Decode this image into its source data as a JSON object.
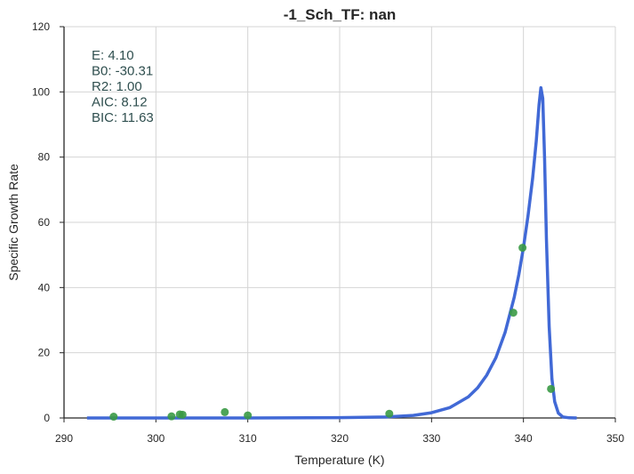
{
  "chart_data": {
    "type": "scatter",
    "title": "-1_Sch_TF: nan",
    "xlabel": "Temperature (K)",
    "ylabel": "Specific Growth Rate",
    "xlim": [
      290,
      350
    ],
    "ylim": [
      0,
      120
    ],
    "xticks": [
      290,
      300,
      310,
      320,
      330,
      340,
      350
    ],
    "yticks": [
      0,
      20,
      40,
      60,
      80,
      100,
      120
    ],
    "grid": true,
    "colors": {
      "points": "#3a9a45",
      "fit": "#4169d6",
      "annotation": "#2f4f4f"
    },
    "points": {
      "x": [
        295.4,
        301.7,
        302.6,
        302.9,
        307.5,
        310.0,
        325.4,
        338.9,
        339.9,
        343.0
      ],
      "y": [
        0.4,
        0.5,
        1.1,
        1.0,
        1.8,
        0.8,
        1.3,
        32.3,
        52.2,
        8.9
      ]
    },
    "fit": {
      "x": [
        292.5,
        300,
        310,
        320,
        325,
        328,
        330,
        332,
        334,
        335,
        336,
        337,
        338,
        339,
        339.5,
        340,
        340.5,
        341,
        341.4,
        341.7,
        341.9,
        342.1,
        342.3,
        342.5,
        342.8,
        343.1,
        343.4,
        343.8,
        344.3,
        345,
        345.8
      ],
      "y": [
        0,
        0,
        0,
        0.1,
        0.3,
        0.8,
        1.6,
        3.2,
        6.5,
        9.2,
        13.1,
        18.5,
        26.2,
        37.0,
        44.0,
        52.3,
        62.0,
        73.5,
        85.0,
        96.0,
        101.3,
        98.0,
        80.0,
        55.0,
        28.0,
        12.0,
        5.0,
        1.5,
        0.3,
        0.05,
        0
      ]
    },
    "annotations": [
      {
        "label": "E:  4.10"
      },
      {
        "label": "B0:  -30.31"
      },
      {
        "label": "R2:  1.00"
      },
      {
        "label": "AIC: 8.12"
      },
      {
        "label": "BIC: 11.63"
      }
    ]
  }
}
